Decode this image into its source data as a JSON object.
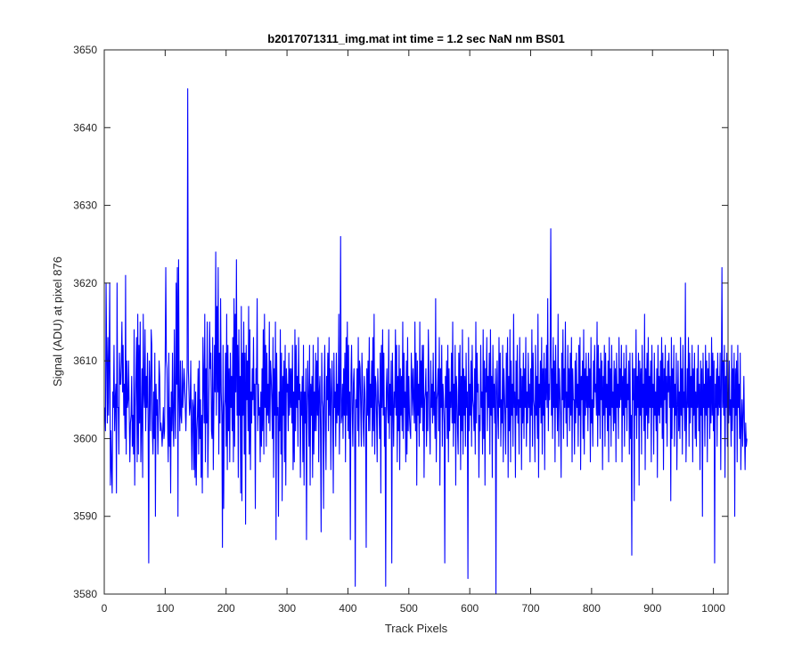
{
  "chart_data": {
    "type": "line",
    "title": "b2017071311_img.mat int time = 1.2 sec  NaN nm BS01",
    "xlabel": "Track Pixels",
    "ylabel": "Signal (ADU) at pixel 876",
    "xlim": [
      0,
      1024
    ],
    "ylim": [
      3580,
      3650
    ],
    "xticks": [
      0,
      100,
      200,
      300,
      400,
      500,
      600,
      700,
      800,
      900,
      1000
    ],
    "yticks": [
      3580,
      3590,
      3600,
      3610,
      3620,
      3630,
      3640,
      3650
    ],
    "xtick_labels": [
      "0",
      "100",
      "200",
      "300",
      "400",
      "500",
      "600",
      "700",
      "800",
      "900",
      "1000"
    ],
    "ytick_labels": [
      "3580",
      "3590",
      "3600",
      "3610",
      "3620",
      "3630",
      "3640",
      "3650"
    ],
    "grid": false,
    "box": true,
    "line_color": "#0000ff",
    "series": [
      {
        "x_start": 1,
        "x_step": 1,
        "values": [
          3604,
          3601,
          3620,
          3611,
          3602,
          3613,
          3603,
          3611,
          3620,
          3594,
          3601,
          3596,
          3593,
          3606,
          3604,
          3612,
          3601,
          3605,
          3607,
          3593,
          3620,
          3604,
          3604,
          3598,
          3611,
          3607,
          3607,
          3610,
          3615,
          3606,
          3612,
          3603,
          3607,
          3600,
          3621,
          3598,
          3610,
          3604,
          3605,
          3610,
          3603,
          3597,
          3602,
          3603,
          3608,
          3599,
          3603,
          3598,
          3614,
          3594,
          3604,
          3608,
          3613,
          3597,
          3616,
          3598,
          3612,
          3602,
          3615,
          3597,
          3602,
          3609,
          3595,
          3616,
          3606,
          3604,
          3614,
          3601,
          3608,
          3604,
          3611,
          3602,
          3584,
          3610,
          3607,
          3601,
          3614,
          3612,
          3601,
          3598,
          3606,
          3600,
          3611,
          3590,
          3607,
          3603,
          3605,
          3598,
          3603,
          3610,
          3608,
          3601,
          3602,
          3601,
          3599,
          3601,
          3604,
          3600,
          3601,
          3610,
          3622,
          3610,
          3609,
          3602,
          3597,
          3611,
          3599,
          3604,
          3593,
          3606,
          3601,
          3611,
          3602,
          3599,
          3614,
          3604,
          3600,
          3620,
          3607,
          3622,
          3590,
          3623,
          3606,
          3601,
          3610,
          3603,
          3602,
          3610,
          3604,
          3606,
          3609,
          3607,
          3604,
          3601,
          3605,
          3609,
          3645,
          3609,
          3606,
          3603,
          3604,
          3610,
          3601,
          3596,
          3605,
          3604,
          3596,
          3607,
          3595,
          3606,
          3594,
          3601,
          3603,
          3609,
          3598,
          3610,
          3600,
          3605,
          3595,
          3603,
          3593,
          3613,
          3608,
          3602,
          3616,
          3597,
          3609,
          3602,
          3615,
          3595,
          3601,
          3607,
          3615,
          3609,
          3611,
          3601,
          3600,
          3613,
          3596,
          3604,
          3612,
          3606,
          3624,
          3603,
          3617,
          3606,
          3622,
          3598,
          3611,
          3602,
          3618,
          3606,
          3603,
          3586,
          3612,
          3591,
          3604,
          3605,
          3611,
          3599,
          3616,
          3596,
          3612,
          3601,
          3609,
          3597,
          3611,
          3604,
          3608,
          3601,
          3613,
          3597,
          3618,
          3599,
          3616,
          3606,
          3623,
          3603,
          3612,
          3595,
          3614,
          3603,
          3608,
          3593,
          3617,
          3592,
          3611,
          3603,
          3615,
          3598,
          3611,
          3589,
          3612,
          3605,
          3610,
          3601,
          3617,
          3598,
          3614,
          3596,
          3606,
          3602,
          3609,
          3605,
          3613,
          3603,
          3607,
          3591,
          3609,
          3607,
          3618,
          3601,
          3607,
          3603,
          3604,
          3597,
          3606,
          3599,
          3609,
          3601,
          3614,
          3598,
          3616,
          3604,
          3612,
          3599,
          3611,
          3603,
          3607,
          3602,
          3615,
          3601,
          3610,
          3608,
          3605,
          3600,
          3613,
          3595,
          3609,
          3603,
          3615,
          3587,
          3611,
          3603,
          3604,
          3590,
          3606,
          3601,
          3614,
          3598,
          3611,
          3592,
          3608,
          3603,
          3610,
          3597,
          3612,
          3594,
          3609,
          3606,
          3607,
          3601,
          3611,
          3603,
          3609,
          3604,
          3609,
          3602,
          3612,
          3596,
          3606,
          3597,
          3614,
          3601,
          3612,
          3604,
          3608,
          3599,
          3613,
          3605,
          3607,
          3595,
          3606,
          3603,
          3608,
          3597,
          3612,
          3594,
          3606,
          3602,
          3609,
          3587,
          3604,
          3610,
          3605,
          3599,
          3612,
          3594,
          3607,
          3603,
          3608,
          3595,
          3612,
          3598,
          3606,
          3601,
          3611,
          3601,
          3610,
          3603,
          3613,
          3597,
          3606,
          3608,
          3601,
          3588,
          3611,
          3605,
          3604,
          3591,
          3607,
          3612,
          3601,
          3596,
          3608,
          3605,
          3611,
          3601,
          3613,
          3603,
          3609,
          3596,
          3606,
          3610,
          3603,
          3593,
          3611,
          3604,
          3606,
          3599,
          3611,
          3602,
          3607,
          3603,
          3616,
          3598,
          3605,
          3626,
          3602,
          3603,
          3607,
          3600,
          3609,
          3603,
          3611,
          3597,
          3613,
          3603,
          3615,
          3601,
          3612,
          3600,
          3606,
          3587,
          3608,
          3612,
          3604,
          3599,
          3607,
          3609,
          3603,
          3581,
          3605,
          3604,
          3609,
          3601,
          3613,
          3599,
          3610,
          3609,
          3604,
          3599,
          3611,
          3607,
          3602,
          3599,
          3608,
          3606,
          3602,
          3586,
          3609,
          3603,
          3610,
          3601,
          3613,
          3601,
          3607,
          3604,
          3610,
          3599,
          3613,
          3601,
          3616,
          3598,
          3608,
          3607,
          3603,
          3597,
          3609,
          3605,
          3604,
          3600,
          3611,
          3593,
          3612,
          3604,
          3614,
          3603,
          3611,
          3599,
          3604,
          3581,
          3606,
          3609,
          3604,
          3602,
          3614,
          3600,
          3607,
          3603,
          3610,
          3584,
          3611,
          3605,
          3599,
          3606,
          3604,
          3614,
          3603,
          3612,
          3597,
          3608,
          3601,
          3612,
          3596,
          3609,
          3603,
          3608,
          3601,
          3615,
          3600,
          3611,
          3604,
          3606,
          3597,
          3610,
          3598,
          3613,
          3601,
          3608,
          3603,
          3601,
          3600,
          3611,
          3608,
          3603,
          3609,
          3605,
          3602,
          3615,
          3601,
          3611,
          3594,
          3610,
          3603,
          3607,
          3599,
          3615,
          3602,
          3610,
          3604,
          3612,
          3601,
          3612,
          3595,
          3605,
          3606,
          3609,
          3599,
          3606,
          3601,
          3614,
          3608,
          3602,
          3598,
          3610,
          3604,
          3607,
          3602,
          3611,
          3603,
          3606,
          3600,
          3618,
          3597,
          3605,
          3606,
          3609,
          3601,
          3613,
          3594,
          3609,
          3604,
          3612,
          3599,
          3607,
          3605,
          3602,
          3584,
          3608,
          3604,
          3610,
          3600,
          3612,
          3597,
          3609,
          3601,
          3606,
          3604,
          3611,
          3602,
          3615,
          3599,
          3607,
          3602,
          3612,
          3594,
          3608,
          3606,
          3601,
          3598,
          3611,
          3603,
          3612,
          3596,
          3608,
          3601,
          3614,
          3598,
          3609,
          3603,
          3608,
          3599,
          3611,
          3604,
          3606,
          3582,
          3613,
          3601,
          3607,
          3603,
          3610,
          3599,
          3612,
          3605,
          3604,
          3601,
          3609,
          3598,
          3615,
          3602,
          3611,
          3606,
          3607,
          3595,
          3603,
          3601,
          3612,
          3604,
          3606,
          3598,
          3614,
          3600,
          3610,
          3594,
          3609,
          3606,
          3613,
          3601,
          3608,
          3604,
          3611,
          3598,
          3614,
          3603,
          3608,
          3595,
          3612,
          3604,
          3607,
          3602,
          3609,
          3580,
          3606,
          3610,
          3603,
          3600,
          3613,
          3604,
          3611,
          3599,
          3605,
          3602,
          3612,
          3597,
          3609,
          3606,
          3603,
          3598,
          3611,
          3604,
          3613,
          3595,
          3608,
          3601,
          3614,
          3597,
          3610,
          3603,
          3607,
          3599,
          3616,
          3604,
          3606,
          3595,
          3610,
          3603,
          3612,
          3602,
          3605,
          3598,
          3613,
          3604,
          3609,
          3596,
          3608,
          3602,
          3611,
          3600,
          3609,
          3604,
          3613,
          3599,
          3606,
          3602,
          3611,
          3604,
          3607,
          3597,
          3609,
          3603,
          3614,
          3599,
          3611,
          3605,
          3604,
          3597,
          3612,
          3603,
          3608,
          3600,
          3616,
          3595,
          3607,
          3604,
          3610,
          3602,
          3613,
          3598,
          3609,
          3603,
          3611,
          3596,
          3609,
          3605,
          3612,
          3604,
          3618,
          3601,
          3607,
          3605,
          3611,
          3627,
          3603,
          3609,
          3600,
          3613,
          3604,
          3610,
          3597,
          3612,
          3604,
          3607,
          3601,
          3616,
          3599,
          3609,
          3606,
          3603,
          3595,
          3611,
          3605,
          3614,
          3600,
          3609,
          3604,
          3615,
          3602,
          3606,
          3599,
          3612,
          3604,
          3609,
          3601,
          3611,
          3603,
          3613,
          3597,
          3609,
          3605,
          3605,
          3598,
          3610,
          3602,
          3611,
          3604,
          3607,
          3599,
          3612,
          3603,
          3613,
          3596,
          3608,
          3605,
          3610,
          3600,
          3614,
          3598,
          3609,
          3603,
          3611,
          3604,
          3608,
          3601,
          3611,
          3604,
          3609,
          3597,
          3613,
          3602,
          3605,
          3599,
          3610,
          3604,
          3612,
          3606,
          3607,
          3603,
          3615,
          3599,
          3612,
          3603,
          3609,
          3600,
          3611,
          3605,
          3610,
          3596,
          3608,
          3603,
          3612,
          3599,
          3611,
          3604,
          3607,
          3601,
          3610,
          3597,
          3613,
          3603,
          3609,
          3599,
          3612,
          3604,
          3606,
          3601,
          3610,
          3602,
          3609,
          3597,
          3611,
          3604,
          3607,
          3600,
          3613,
          3604,
          3609,
          3605,
          3612,
          3597,
          3608,
          3603,
          3611,
          3599,
          3609,
          3604,
          3612,
          3601,
          3607,
          3605,
          3610,
          3598,
          3611,
          3600,
          3603,
          3585,
          3611,
          3605,
          3609,
          3592,
          3609,
          3603,
          3614,
          3600,
          3608,
          3604,
          3611,
          3594,
          3610,
          3603,
          3609,
          3598,
          3612,
          3604,
          3607,
          3601,
          3616,
          3596,
          3609,
          3603,
          3611,
          3600,
          3613,
          3602,
          3608,
          3604,
          3610,
          3597,
          3612,
          3604,
          3607,
          3598,
          3611,
          3603,
          3606,
          3601,
          3609,
          3595,
          3612,
          3603,
          3608,
          3602,
          3610,
          3604,
          3613,
          3600,
          3611,
          3596,
          3609,
          3605,
          3612,
          3602,
          3608,
          3599,
          3610,
          3606,
          3611,
          3604,
          3608,
          3592,
          3613,
          3600,
          3609,
          3604,
          3612,
          3599,
          3607,
          3603,
          3611,
          3596,
          3604,
          3610,
          3601,
          3606,
          3600,
          3613,
          3603,
          3609,
          3598,
          3612,
          3604,
          3606,
          3601,
          3620,
          3597,
          3603,
          3609,
          3604,
          3613,
          3599,
          3611,
          3602,
          3608,
          3604,
          3612,
          3597,
          3609,
          3603,
          3611,
          3600,
          3606,
          3599,
          3609,
          3604,
          3612,
          3601,
          3607,
          3596,
          3610,
          3603,
          3609,
          3590,
          3611,
          3604,
          3607,
          3599,
          3612,
          3603,
          3610,
          3597,
          3609,
          3604,
          3611,
          3600,
          3608,
          3602,
          3613,
          3603,
          3611,
          3601,
          3610,
          3584,
          3607,
          3604,
          3609,
          3599,
          3611,
          3603,
          3608,
          3604,
          3611,
          3596,
          3607,
          3622,
          3604,
          3610,
          3603,
          3612,
          3595,
          3608,
          3604,
          3611,
          3599,
          3606,
          3602,
          3610,
          3603,
          3605,
          3599,
          3612,
          3601,
          3609,
          3604,
          3611,
          3590,
          3609,
          3603,
          3610,
          3597,
          3612,
          3604,
          3607,
          3600,
          3611,
          3596,
          3602,
          3605,
          3599,
          3603,
          3608,
          3601,
          3596,
          3602,
          3599,
          3600
        ]
      }
    ]
  }
}
